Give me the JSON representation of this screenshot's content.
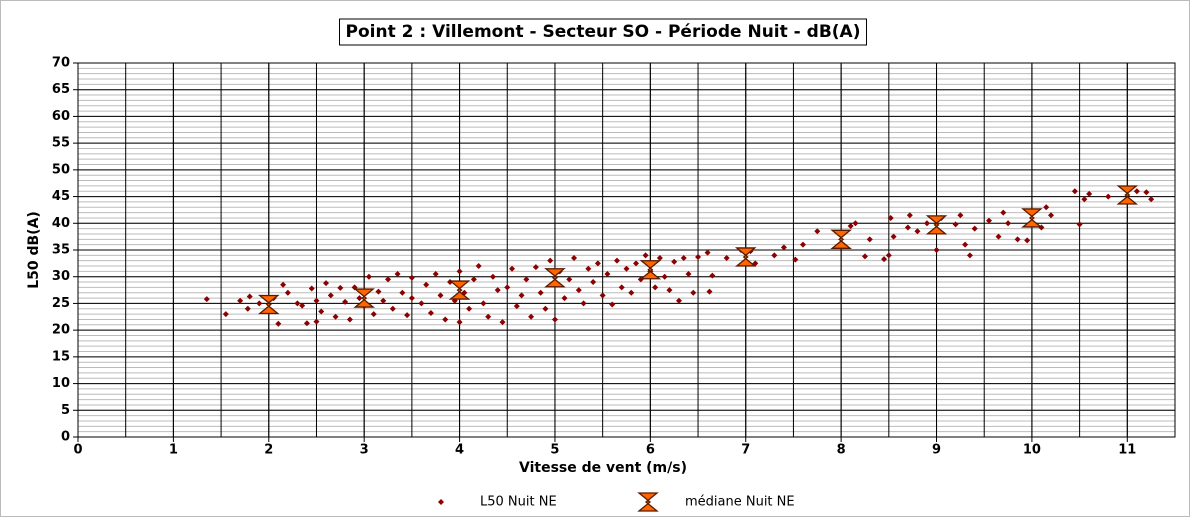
{
  "chart_data": {
    "type": "scatter",
    "title": "Point 2 : Villemont - Secteur SO  - Période Nuit - dB(A)",
    "xlabel": "Vitesse de vent (m/s)",
    "ylabel": "L50 dB(A)",
    "xlim": [
      0,
      11.5
    ],
    "ylim": [
      0,
      70
    ],
    "xticks": [
      0,
      1,
      2,
      3,
      4,
      5,
      6,
      7,
      8,
      9,
      10,
      11
    ],
    "yticks": [
      0,
      5,
      10,
      15,
      20,
      25,
      30,
      35,
      40,
      45,
      50,
      55,
      60,
      65,
      70
    ],
    "x_minor_step": 0.5,
    "y_minor_step": 1,
    "grid": true,
    "legend": "bottom",
    "series": [
      {
        "name": "L50 Nuit NE",
        "color": "#8b0000",
        "x": [
          1.35,
          1.55,
          1.7,
          1.78,
          1.8,
          1.9,
          2.0,
          2.05,
          2.1,
          2.15,
          2.2,
          2.3,
          2.35,
          2.4,
          2.45,
          2.5,
          2.5,
          2.55,
          2.6,
          2.65,
          2.7,
          2.75,
          2.8,
          2.85,
          2.9,
          2.95,
          3.0,
          3.05,
          3.1,
          3.15,
          3.2,
          3.25,
          3.3,
          3.35,
          3.4,
          3.45,
          3.5,
          3.5,
          3.6,
          3.65,
          3.7,
          3.75,
          3.8,
          3.85,
          3.9,
          3.95,
          4.0,
          4.0,
          4.05,
          4.1,
          4.15,
          4.2,
          4.25,
          4.3,
          4.35,
          4.4,
          4.45,
          4.5,
          4.55,
          4.6,
          4.65,
          4.7,
          4.75,
          4.8,
          4.85,
          4.9,
          4.95,
          5.0,
          5.0,
          5.05,
          5.1,
          5.15,
          5.2,
          5.25,
          5.3,
          5.35,
          5.4,
          5.45,
          5.5,
          5.55,
          5.6,
          5.65,
          5.7,
          5.75,
          5.8,
          5.85,
          5.9,
          5.95,
          6.0,
          6.05,
          6.1,
          6.15,
          6.2,
          6.25,
          6.3,
          6.35,
          6.4,
          6.45,
          6.5,
          6.6,
          6.62,
          6.65,
          6.8,
          6.95,
          7.05,
          7.1,
          7.3,
          7.4,
          7.52,
          7.6,
          7.75,
          8.1,
          8.15,
          8.25,
          8.3,
          8.45,
          8.5,
          8.52,
          8.55,
          8.7,
          8.72,
          8.8,
          8.9,
          9.0,
          9.05,
          9.2,
          9.25,
          9.3,
          9.35,
          9.4,
          9.55,
          9.65,
          9.7,
          9.75,
          9.85,
          9.95,
          10.1,
          10.15,
          10.2,
          10.45,
          10.5,
          10.55,
          10.6,
          10.8,
          11.1,
          11.2,
          11.25
        ],
        "values": [
          25.8,
          23,
          25.5,
          24,
          26.3,
          25,
          23.5,
          26,
          21.2,
          28.5,
          27,
          25,
          24.6,
          21.3,
          27.8,
          25.5,
          21.6,
          23.5,
          28.8,
          26.5,
          22.5,
          27.9,
          25.3,
          22,
          28,
          26,
          24.5,
          30,
          23,
          27.2,
          25.5,
          29.5,
          24,
          30.5,
          27,
          22.8,
          26,
          29.8,
          25,
          28.5,
          23.2,
          30.5,
          26.5,
          22,
          29,
          25.5,
          31,
          21.5,
          27,
          24,
          29.5,
          32,
          25,
          22.5,
          30,
          27.5,
          21.5,
          28,
          31.5,
          24.5,
          26.5,
          29.5,
          22.5,
          31.8,
          27,
          24,
          33,
          28.5,
          22,
          31,
          26,
          29.5,
          33.5,
          27.5,
          25,
          31.5,
          29,
          32.5,
          26.5,
          30.5,
          24.8,
          33,
          28,
          31.5,
          27,
          32.5,
          29.5,
          34,
          31,
          28,
          33.5,
          30,
          27.5,
          32.8,
          25.5,
          33.5,
          30.5,
          27,
          33.7,
          34.5,
          27.2,
          30.2,
          33.5,
          35,
          34.8,
          32.5,
          34,
          35.5,
          33.2,
          36,
          38.5,
          39.5,
          40,
          33.8,
          37,
          33.3,
          34,
          41,
          37.5,
          39.2,
          41.5,
          38.5,
          40,
          35,
          41,
          39.8,
          41.5,
          36,
          34,
          39,
          40.5,
          37.5,
          42,
          40,
          37,
          36.8,
          39.2,
          43,
          41.5,
          46,
          39.8,
          44.5,
          45.5,
          45,
          46,
          45.8,
          44.5
        ]
      },
      {
        "name": "médiane Nuit NE",
        "color": "#ff6600",
        "x": [
          2,
          3,
          4,
          5,
          6,
          7,
          8,
          9,
          10,
          11
        ],
        "values": [
          24.8,
          26,
          27.5,
          29.8,
          31.3,
          33.7,
          37,
          39.7,
          41,
          45.3
        ]
      }
    ]
  }
}
